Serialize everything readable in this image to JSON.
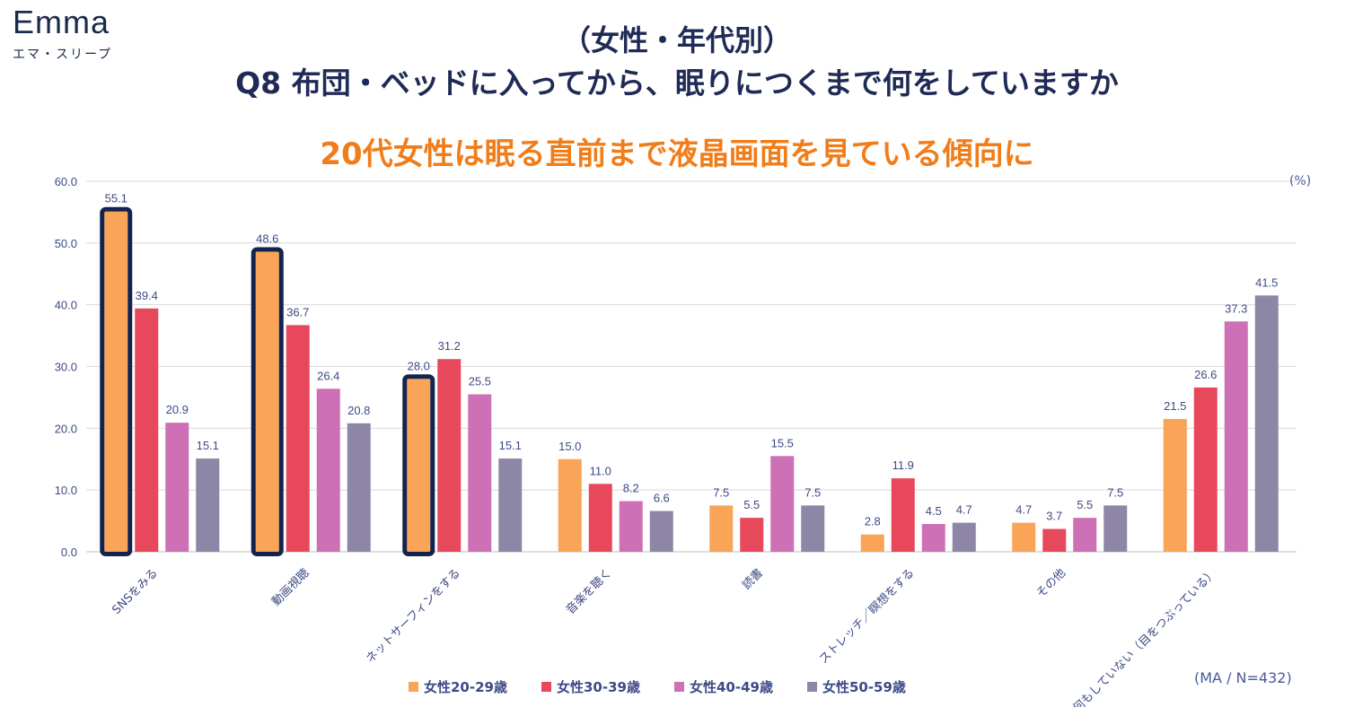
{
  "logo": {
    "wordmark": "Emma",
    "kana": "エマ・スリープ"
  },
  "title_line1": "（女性・年代別）",
  "title_line2": "Q8 布団・ベッドに入ってから、眠りにつくまで何をしていますか",
  "subtitle": "20代女性は眠る直前まで液晶画面を見ている傾向に",
  "unit_label": "(%)",
  "note": "(MA / N=432)",
  "colors": {
    "title": "#1f2a55",
    "subtitle": "#f07d19",
    "axis_text": "#3d4a86",
    "highlight_border": "#14234d",
    "series": [
      "#f9a456",
      "#e8485c",
      "#cd70b5",
      "#8e86a6"
    ]
  },
  "chart_data": {
    "type": "bar",
    "categories": [
      "SNSをみる",
      "動画視聴",
      "ネットサーフィンをする",
      "音楽を聴く",
      "読書",
      "ストレッチ／瞑想をする",
      "その他",
      "何もしていない（目をつぶっている）"
    ],
    "series": [
      {
        "name": "女性20-29歳",
        "values": [
          55.1,
          48.6,
          28.0,
          15.0,
          7.5,
          2.8,
          4.7,
          21.5
        ]
      },
      {
        "name": "女性30-39歳",
        "values": [
          39.4,
          36.7,
          31.2,
          11.0,
          5.5,
          11.9,
          3.7,
          26.6
        ]
      },
      {
        "name": "女性40-49歳",
        "values": [
          20.9,
          26.4,
          25.5,
          8.2,
          15.5,
          4.5,
          5.5,
          37.3
        ]
      },
      {
        "name": "女性50-59歳",
        "values": [
          15.1,
          20.8,
          15.1,
          6.6,
          7.5,
          4.7,
          7.5,
          41.5
        ]
      }
    ],
    "highlighted": [
      [
        0,
        0
      ],
      [
        0,
        1
      ],
      [
        0,
        2
      ]
    ],
    "yticks": [
      "0.0",
      "10.0",
      "20.0",
      "30.0",
      "40.0",
      "50.0",
      "60.0"
    ],
    "ylim": [
      0,
      60
    ],
    "grid": true,
    "legend_position": "bottom"
  }
}
